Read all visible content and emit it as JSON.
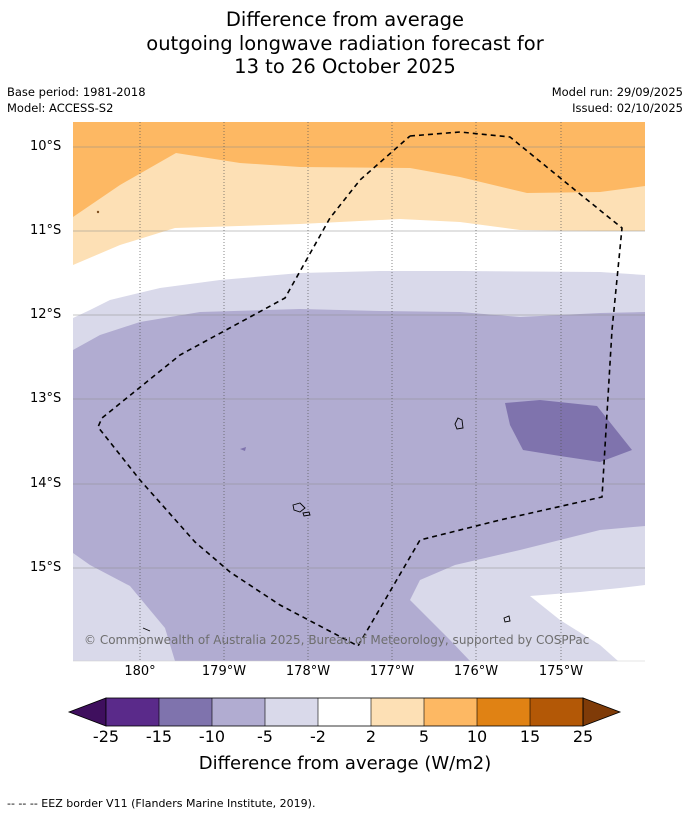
{
  "title": {
    "line1": "Difference from average",
    "line2": "outgoing longwave radiation forecast for",
    "line3": "13 to 26 October 2025"
  },
  "meta": {
    "base_period": "Base period: 1981-2018",
    "model": "Model: ACCESS-S2",
    "model_run": "Model run: 29/09/2025",
    "issued": "Issued: 02/10/2025"
  },
  "map": {
    "lat_labels": [
      "10°S",
      "11°S",
      "12°S",
      "13°S",
      "14°S",
      "15°S"
    ],
    "lon_labels": [
      "180°",
      "179°W",
      "178°W",
      "177°W",
      "176°W",
      "175°W"
    ],
    "copyright": "© Commonwealth of Australia 2025, Bureau of Meteorology, supported by COSPPac",
    "colors": {
      "c_-25": "#3f0f5e",
      "c_-20": "#5a2a8a",
      "c_-15": "#7f73ad",
      "c_-10": "#b1acd1",
      "c_-5": "#d9d9ea",
      "c_0": "#ffffff",
      "c_2": "#fde0b5",
      "c_5": "#fdb863",
      "c_10": "#e08214",
      "c_15": "#b35806",
      "c_25": "#7f3b08"
    }
  },
  "colorbar": {
    "ticks": [
      "-25",
      "-15",
      "-10",
      "-5",
      "-2",
      "2",
      "5",
      "10",
      "15",
      "25"
    ],
    "label": "Difference from average (W/m2)"
  },
  "footnote": "--  --  -- EEZ border V11 (Flanders Marine Institute, 2019)."
}
